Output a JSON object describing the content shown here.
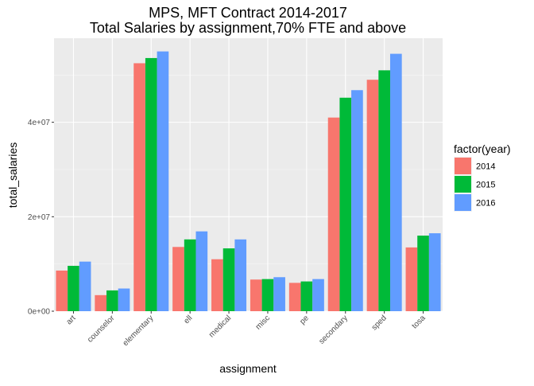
{
  "chart_data": {
    "type": "bar",
    "title": "MPS, MFT Contract 2014-2017",
    "subtitle": "Total Salaries by assignment,70% FTE and above",
    "xlabel": "assignment",
    "ylabel": "total_salaries",
    "categories": [
      "art",
      "counselor",
      "elementary",
      "ell",
      "medical",
      "misc",
      "pe",
      "secondary",
      "sped",
      "tosa"
    ],
    "series": [
      {
        "name": "2014",
        "color": "#F8766D",
        "values": [
          8600000,
          3400000,
          52500000,
          13600000,
          11000000,
          6700000,
          6000000,
          41000000,
          49000000,
          13500000
        ]
      },
      {
        "name": "2015",
        "color": "#00BA38",
        "values": [
          9600000,
          4400000,
          53600000,
          15200000,
          13300000,
          6800000,
          6300000,
          45200000,
          51000000,
          16000000
        ]
      },
      {
        "name": "2016",
        "color": "#619CFF",
        "values": [
          10500000,
          4800000,
          55000000,
          16900000,
          15200000,
          7200000,
          6800000,
          46800000,
          54500000,
          16500000
        ]
      }
    ],
    "yticks": [
      0,
      20000000,
      40000000
    ],
    "ytick_labels": [
      "0e+00",
      "2e+07",
      "4e+07"
    ],
    "ylim": [
      0,
      57800000
    ],
    "legend": {
      "title": "factor(year)",
      "position": "right"
    },
    "grid": true
  }
}
